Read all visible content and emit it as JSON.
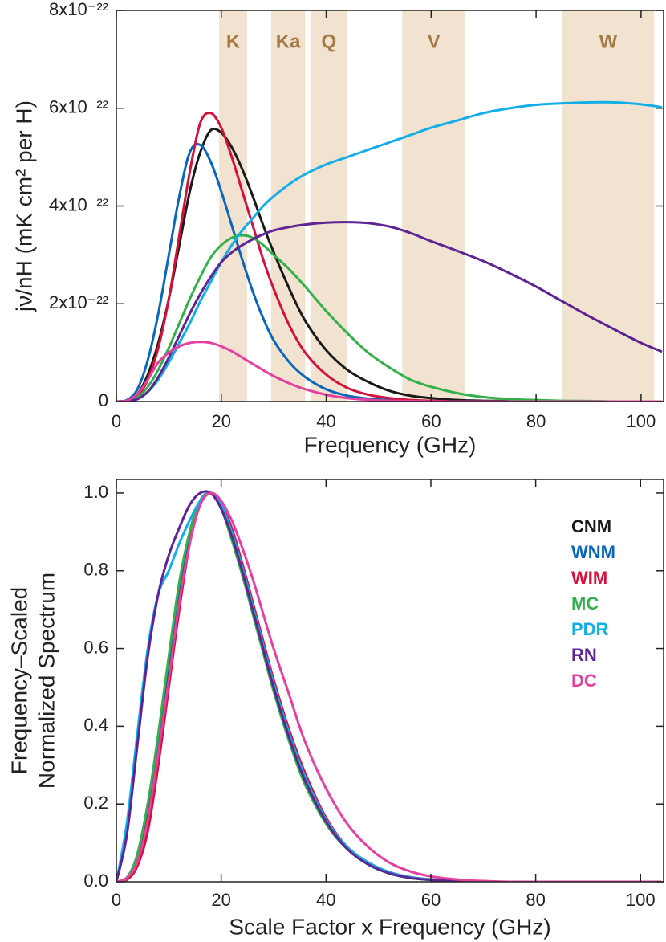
{
  "chart_data": [
    {
      "type": "line",
      "ylabel": "jν/nH (mK cm² per H)",
      "xlabel": "Frequency (GHz)",
      "xlim": [
        0,
        104.3
      ],
      "ylim": [
        0,
        8e-22
      ],
      "xticks": [
        0,
        20,
        40,
        60,
        80,
        100
      ],
      "yticks": [
        0,
        {
          "value": 2e-22,
          "label": "2x10⁻²²"
        },
        {
          "value": 4e-22,
          "label": "4x10⁻²²"
        },
        {
          "value": 6e-22,
          "label": "6x10⁻²²"
        },
        {
          "value": 8e-22,
          "label": "8x10⁻²²"
        }
      ],
      "bands": [
        {
          "label": "K",
          "range": [
            19.6,
            24.9
          ],
          "color": "#f2e2d0"
        },
        {
          "label": "Ka",
          "range": [
            29.5,
            36
          ],
          "color": "#f2e2d0"
        },
        {
          "label": "Q",
          "range": [
            37,
            44
          ],
          "color": "#f2e2d0"
        },
        {
          "label": "V",
          "range": [
            54.5,
            66.5
          ],
          "color": "#f2e2d0"
        },
        {
          "label": "W",
          "range": [
            85,
            102.5
          ],
          "color": "#f2e2d0"
        }
      ],
      "band_label_color": "#a57a45",
      "x": [
        0,
        2,
        4,
        6,
        8,
        10,
        12,
        14,
        16,
        18,
        20,
        22,
        24,
        26,
        28,
        30,
        33,
        36,
        40,
        44,
        48,
        52,
        56,
        60,
        65,
        70,
        75,
        80,
        85,
        90,
        95,
        100,
        104
      ],
      "series": [
        {
          "color": "#1a1a1a",
          "values": [
            0,
            2e-24,
            1.5e-23,
            5.5e-23,
            1.2e-22,
            2.1e-22,
            3.2e-22,
            4.3e-22,
            5.1e-22,
            5.55e-22,
            5.5e-22,
            5.2e-22,
            4.75e-22,
            4.2e-22,
            3.6e-22,
            3.05e-22,
            2.3e-22,
            1.65e-22,
            1.05e-22,
            6.5e-23,
            4e-23,
            2.2e-23,
            1.2e-23,
            7e-24,
            3e-24,
            1.5e-24,
            1e-24,
            0,
            0,
            0,
            0,
            0,
            0
          ]
        },
        {
          "color": "#0a66b8",
          "values": [
            0,
            3e-24,
            2.5e-23,
            8.5e-23,
            1.8e-22,
            3e-22,
            4.2e-22,
            5.1e-22,
            5.25e-22,
            4.9e-22,
            4.3e-22,
            3.6e-22,
            2.9e-22,
            2.25e-22,
            1.7e-22,
            1.25e-22,
            8e-23,
            5e-23,
            2.5e-23,
            1.2e-23,
            6e-24,
            3e-24,
            1e-24,
            0,
            0,
            0,
            0,
            0,
            0,
            0,
            0,
            0,
            0
          ]
        },
        {
          "color": "#d4103c",
          "values": [
            0,
            1e-24,
            1e-23,
            4.5e-23,
            1.1e-22,
            2.1e-22,
            3.4e-22,
            4.7e-22,
            5.7e-22,
            5.9e-22,
            5.6e-22,
            5e-22,
            4.3e-22,
            3.6e-22,
            2.9e-22,
            2.3e-22,
            1.55e-22,
            1e-22,
            5.5e-23,
            2.8e-23,
            1.4e-23,
            7e-24,
            3e-24,
            1.5e-24,
            0,
            0,
            0,
            0,
            0,
            0,
            0,
            0,
            0
          ]
        },
        {
          "color": "#33b04a",
          "values": [
            0,
            1e-24,
            8e-24,
            3e-23,
            6.5e-23,
            1.1e-22,
            1.6e-22,
            2.1e-22,
            2.55e-22,
            2.95e-22,
            3.2e-22,
            3.35e-22,
            3.4e-22,
            3.35e-22,
            3.2e-22,
            3e-22,
            2.7e-22,
            2.35e-22,
            1.85e-22,
            1.4e-22,
            1e-22,
            7e-23,
            4.5e-23,
            3e-23,
            1.7e-23,
            9e-24,
            5e-24,
            3e-24,
            1.5e-24,
            1e-24,
            0,
            0,
            0
          ]
        },
        {
          "color": "#12aee8",
          "values": [
            0,
            1e-24,
            5e-24,
            2e-23,
            4.5e-23,
            8e-23,
            1.2e-22,
            1.6e-22,
            2.05e-22,
            2.45e-22,
            2.85e-22,
            3.2e-22,
            3.5e-22,
            3.75e-22,
            4e-22,
            4.2e-22,
            4.45e-22,
            4.65e-22,
            4.85e-22,
            5e-22,
            5.15e-22,
            5.3e-22,
            5.45e-22,
            5.6e-22,
            5.75e-22,
            5.9e-22,
            6e-22,
            6.07e-22,
            6.1e-22,
            6.12e-22,
            6.12e-22,
            6.08e-22,
            6.02e-22
          ]
        },
        {
          "color": "#5e2494",
          "values": [
            0,
            1e-24,
            5e-24,
            2e-23,
            5e-23,
            9e-23,
            1.35e-22,
            1.8e-22,
            2.2e-22,
            2.55e-22,
            2.85e-22,
            3.05e-22,
            3.2e-22,
            3.32e-22,
            3.42e-22,
            3.5e-22,
            3.57e-22,
            3.62e-22,
            3.66e-22,
            3.67e-22,
            3.65e-22,
            3.58e-22,
            3.45e-22,
            3.28e-22,
            3.08e-22,
            2.87e-22,
            2.62e-22,
            2.35e-22,
            2.05e-22,
            1.75e-22,
            1.47e-22,
            1.2e-22,
            1.02e-22
          ]
        },
        {
          "color": "#e2419f",
          "values": [
            0,
            2e-24,
            1.5e-23,
            4.5e-23,
            8e-23,
            1e-22,
            1.13e-22,
            1.2e-22,
            1.22e-22,
            1.2e-22,
            1.13e-22,
            1.03e-22,
            9e-23,
            7.7e-23,
            6.4e-23,
            5.2e-23,
            3.7e-23,
            2.5e-23,
            1.4e-23,
            7e-24,
            3.5e-24,
            1.5e-24,
            1e-24,
            0,
            0,
            0,
            0,
            0,
            0,
            0,
            0,
            0,
            0
          ]
        }
      ]
    },
    {
      "type": "line",
      "ylabel": [
        "Frequency–Scaled",
        "Normalized Spectrum"
      ],
      "xlabel": "Scale Factor x Frequency (GHz)",
      "xlim": [
        0,
        104.4
      ],
      "ylim": [
        0,
        1.035
      ],
      "xticks": [
        0,
        20,
        40,
        60,
        80,
        100
      ],
      "yticks": [
        {
          "value": 0,
          "label": "0.0"
        },
        0.2,
        0.4,
        0.6,
        0.8,
        {
          "value": 1,
          "label": "1.0"
        }
      ],
      "legend": "upper right",
      "x": [
        0,
        2,
        4,
        6,
        8,
        10,
        12,
        14,
        16,
        18,
        20,
        22,
        24,
        26,
        28,
        30,
        33,
        36,
        40,
        44,
        48,
        52,
        56,
        60,
        65,
        70,
        75,
        80,
        85,
        90,
        95,
        100,
        104
      ],
      "series": [
        {
          "name": "CNM",
          "color": "#1a1a1a",
          "values": [
            0,
            0.01,
            0.06,
            0.18,
            0.35,
            0.55,
            0.74,
            0.89,
            0.98,
            1.0,
            0.97,
            0.9,
            0.81,
            0.71,
            0.61,
            0.51,
            0.38,
            0.27,
            0.16,
            0.09,
            0.05,
            0.025,
            0.012,
            0.006,
            0.002,
            0,
            0,
            0,
            0,
            0,
            0,
            0,
            0
          ]
        },
        {
          "name": "WNM",
          "color": "#0a66b8",
          "values": [
            0,
            0.01,
            0.07,
            0.2,
            0.37,
            0.57,
            0.76,
            0.9,
            0.98,
            1.0,
            0.96,
            0.89,
            0.8,
            0.7,
            0.6,
            0.5,
            0.37,
            0.26,
            0.15,
            0.085,
            0.045,
            0.022,
            0.01,
            0.005,
            0.002,
            0,
            0,
            0,
            0,
            0,
            0,
            0,
            0
          ]
        },
        {
          "name": "WIM",
          "color": "#d4103c",
          "values": [
            0,
            0.005,
            0.04,
            0.13,
            0.3,
            0.5,
            0.7,
            0.87,
            0.97,
            1.0,
            0.97,
            0.91,
            0.82,
            0.72,
            0.62,
            0.52,
            0.39,
            0.28,
            0.165,
            0.09,
            0.05,
            0.025,
            0.012,
            0.006,
            0.002,
            0,
            0,
            0,
            0,
            0,
            0,
            0,
            0
          ]
        },
        {
          "name": "MC",
          "color": "#33b04a",
          "values": [
            0,
            0.01,
            0.07,
            0.2,
            0.38,
            0.58,
            0.77,
            0.9,
            0.98,
            1.0,
            0.96,
            0.88,
            0.79,
            0.69,
            0.59,
            0.49,
            0.36,
            0.25,
            0.15,
            0.085,
            0.045,
            0.022,
            0.01,
            0.005,
            0.002,
            0,
            0,
            0,
            0,
            0,
            0,
            0,
            0
          ]
        },
        {
          "name": "PDR",
          "color": "#12aee8",
          "values": [
            0,
            0.15,
            0.38,
            0.6,
            0.74,
            0.8,
            0.87,
            0.93,
            0.98,
            1.0,
            0.97,
            0.9,
            0.81,
            0.71,
            0.61,
            0.51,
            0.38,
            0.27,
            0.16,
            0.09,
            0.05,
            0.025,
            0.012,
            0.006,
            0.002,
            0,
            0,
            0,
            0,
            0,
            0,
            0,
            0
          ]
        },
        {
          "name": "RN",
          "color": "#5e2494",
          "values": [
            0,
            0.12,
            0.35,
            0.58,
            0.74,
            0.84,
            0.91,
            0.97,
            1.0,
            1.0,
            0.96,
            0.89,
            0.8,
            0.7,
            0.6,
            0.5,
            0.37,
            0.26,
            0.155,
            0.085,
            0.045,
            0.022,
            0.01,
            0.005,
            0.002,
            0,
            0,
            0,
            0,
            0,
            0,
            0,
            0
          ]
        },
        {
          "name": "DC",
          "color": "#e2419f",
          "values": [
            0,
            0.01,
            0.05,
            0.16,
            0.33,
            0.52,
            0.72,
            0.87,
            0.97,
            1.0,
            0.98,
            0.93,
            0.86,
            0.78,
            0.69,
            0.6,
            0.48,
            0.36,
            0.24,
            0.15,
            0.09,
            0.05,
            0.027,
            0.014,
            0.006,
            0.002,
            0,
            0,
            0,
            0,
            0,
            0,
            0
          ]
        }
      ]
    }
  ]
}
